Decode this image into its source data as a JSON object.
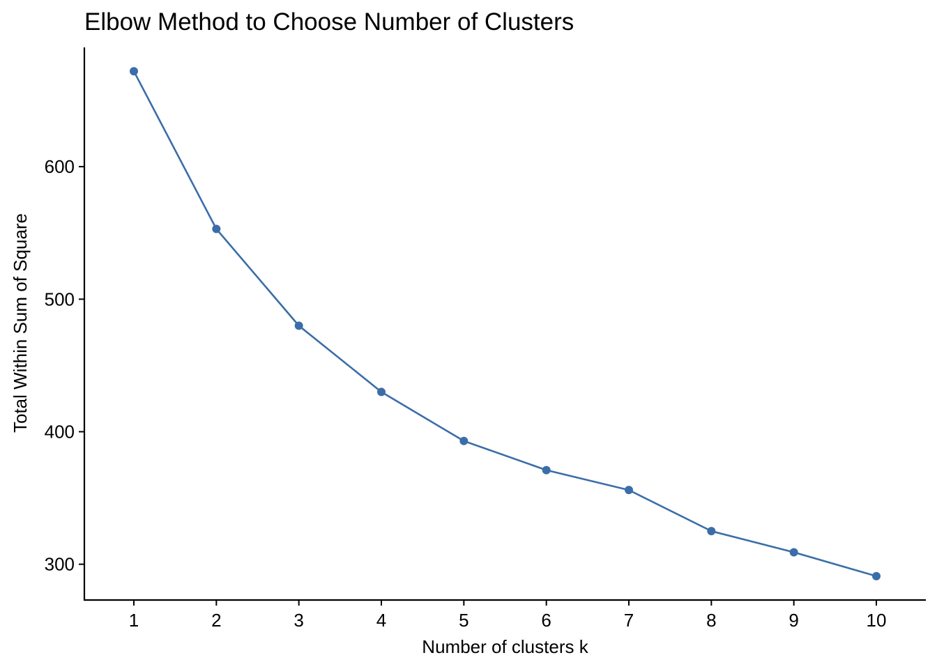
{
  "chart_data": {
    "type": "line",
    "title": "Elbow Method to Choose Number of Clusters",
    "xlabel": "Number of clusters k",
    "ylabel": "Total Within Sum of Square",
    "categories": [
      "1",
      "2",
      "3",
      "4",
      "5",
      "6",
      "7",
      "8",
      "9",
      "10"
    ],
    "x": [
      1,
      2,
      3,
      4,
      5,
      6,
      7,
      8,
      9,
      10
    ],
    "values": [
      672,
      553,
      480,
      430,
      393,
      371,
      356,
      325,
      309,
      291
    ],
    "y_ticks": [
      300,
      400,
      500,
      600
    ],
    "ylim": [
      273,
      690
    ],
    "xlim": [
      0.4,
      10.6
    ],
    "grid": false,
    "legend": "none",
    "line_color": "#3b6ea8",
    "point_color": "#3b6ea8"
  }
}
